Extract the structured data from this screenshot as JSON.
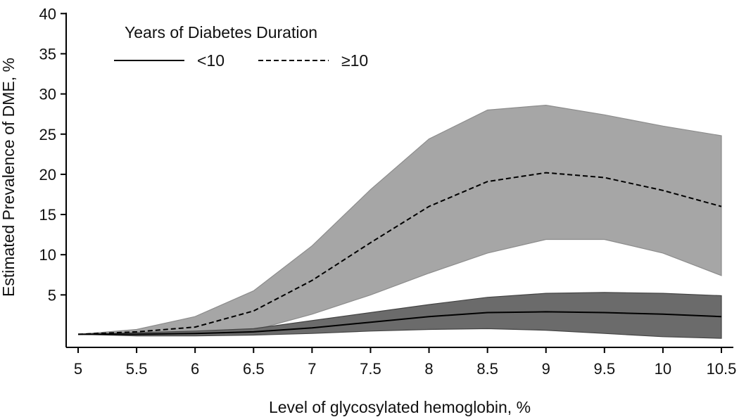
{
  "chart_data": {
    "type": "line",
    "title": "",
    "xlabel": "Level of glycosylated hemoglobin, %",
    "ylabel": "Estimated Prevalence of DME, %",
    "x": [
      5,
      5.5,
      6,
      6.5,
      7,
      7.5,
      8,
      8.5,
      9,
      9.5,
      10,
      10.5
    ],
    "x_tick_labels": [
      "5",
      "5.5",
      "6",
      "6.5",
      "7",
      "7.5",
      "8",
      "8.5",
      "9",
      "9.5",
      "10",
      "10.5"
    ],
    "y_ticks": [
      5,
      10,
      15,
      20,
      25,
      30,
      35,
      40
    ],
    "y_tick_labels": [
      "5",
      "10",
      "15",
      "20",
      "25",
      "30",
      "35",
      "40"
    ],
    "xlim": [
      5,
      10.5
    ],
    "ylim": [
      -1.5,
      40
    ],
    "grid": false,
    "legend": {
      "title": "Years of Diabetes Duration",
      "position": "top-left"
    },
    "series": [
      {
        "name": "<10",
        "line_style": "solid",
        "band_color": "#6b6b6b",
        "values": [
          0.1,
          0.1,
          0.2,
          0.4,
          0.9,
          1.6,
          2.3,
          2.8,
          2.9,
          2.8,
          2.6,
          2.3
        ],
        "ci_lower": [
          0.1,
          -0.1,
          -0.1,
          0.0,
          0.2,
          0.5,
          0.7,
          0.8,
          0.6,
          0.2,
          -0.2,
          -0.4
        ],
        "ci_upper": [
          0.1,
          0.3,
          0.5,
          0.8,
          1.8,
          2.8,
          3.8,
          4.7,
          5.2,
          5.3,
          5.2,
          4.9
        ]
      },
      {
        "name": "≥10",
        "line_style": "dashed",
        "band_color": "#a6a6a6",
        "values": [
          0.1,
          0.4,
          1.0,
          3.0,
          6.8,
          11.5,
          16.0,
          19.1,
          20.2,
          19.6,
          18.0,
          16.0
        ],
        "ci_lower": [
          0.1,
          0.1,
          0.1,
          0.6,
          2.6,
          5.0,
          7.7,
          10.2,
          11.9,
          11.9,
          10.2,
          7.4
        ],
        "ci_upper": [
          0.1,
          0.7,
          2.3,
          5.5,
          11.1,
          18.1,
          24.4,
          28.0,
          28.6,
          27.4,
          26.0,
          24.8
        ]
      }
    ]
  }
}
